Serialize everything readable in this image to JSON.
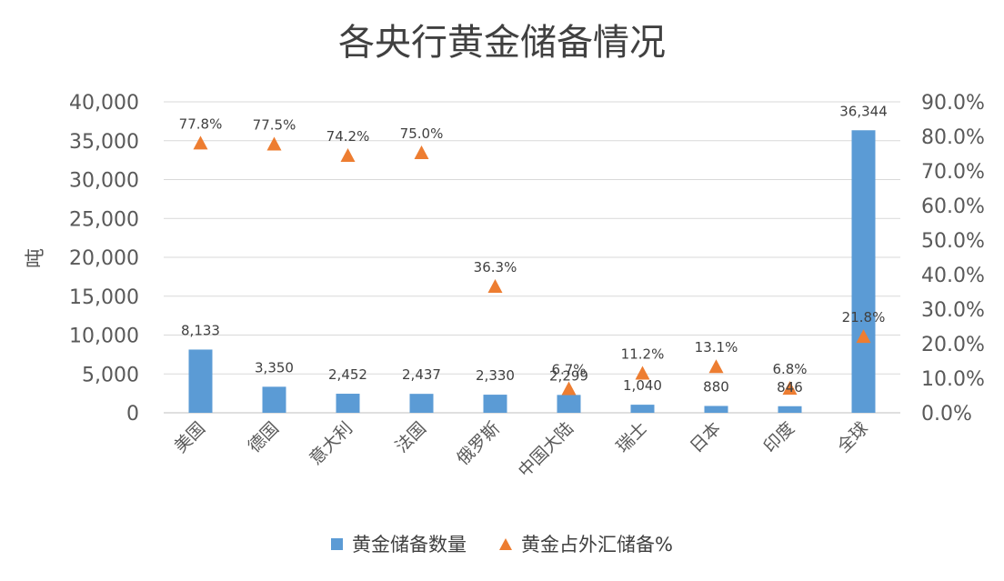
{
  "chart_data": {
    "type": "bar",
    "title": "各央行黄金储备情况",
    "ylabel": "吨",
    "categories": [
      "美国",
      "德国",
      "意大利",
      "法国",
      "俄罗斯",
      "中国大陆",
      "瑞士",
      "日本",
      "印度",
      "全球"
    ],
    "series": [
      {
        "name": "黄金储备数量",
        "type": "bar",
        "axis": "left",
        "color": "#5b9bd5",
        "values": [
          8133,
          3350,
          2452,
          2437,
          2330,
          2299,
          1040,
          880,
          846,
          36344
        ],
        "labels": [
          "8,133",
          "3,350",
          "2,452",
          "2,437",
          "2,330",
          "2,299",
          "1,040",
          "880",
          "846",
          "36,344"
        ]
      },
      {
        "name": "黄金占外汇储备%",
        "type": "scatter",
        "marker": "triangle",
        "axis": "right",
        "color": "#ed7d31",
        "values": [
          77.8,
          77.5,
          74.2,
          75.0,
          36.3,
          6.7,
          11.2,
          13.1,
          6.8,
          21.8
        ],
        "labels": [
          "77.8%",
          "77.5%",
          "74.2%",
          "75.0%",
          "36.3%",
          "6.7%",
          "11.2%",
          "13.1%",
          "6.8%",
          "21.8%"
        ]
      }
    ],
    "ylim_left": [
      0,
      40000
    ],
    "yticks_left": [
      "0",
      "5,000",
      "10,000",
      "15,000",
      "20,000",
      "25,000",
      "30,000",
      "35,000",
      "40,000"
    ],
    "ylim_right": [
      0,
      90
    ],
    "yticks_right": [
      "0.0%",
      "10.0%",
      "20.0%",
      "30.0%",
      "40.0%",
      "50.0%",
      "60.0%",
      "70.0%",
      "80.0%",
      "90.0%"
    ],
    "grid": true,
    "legend": "bottom"
  }
}
